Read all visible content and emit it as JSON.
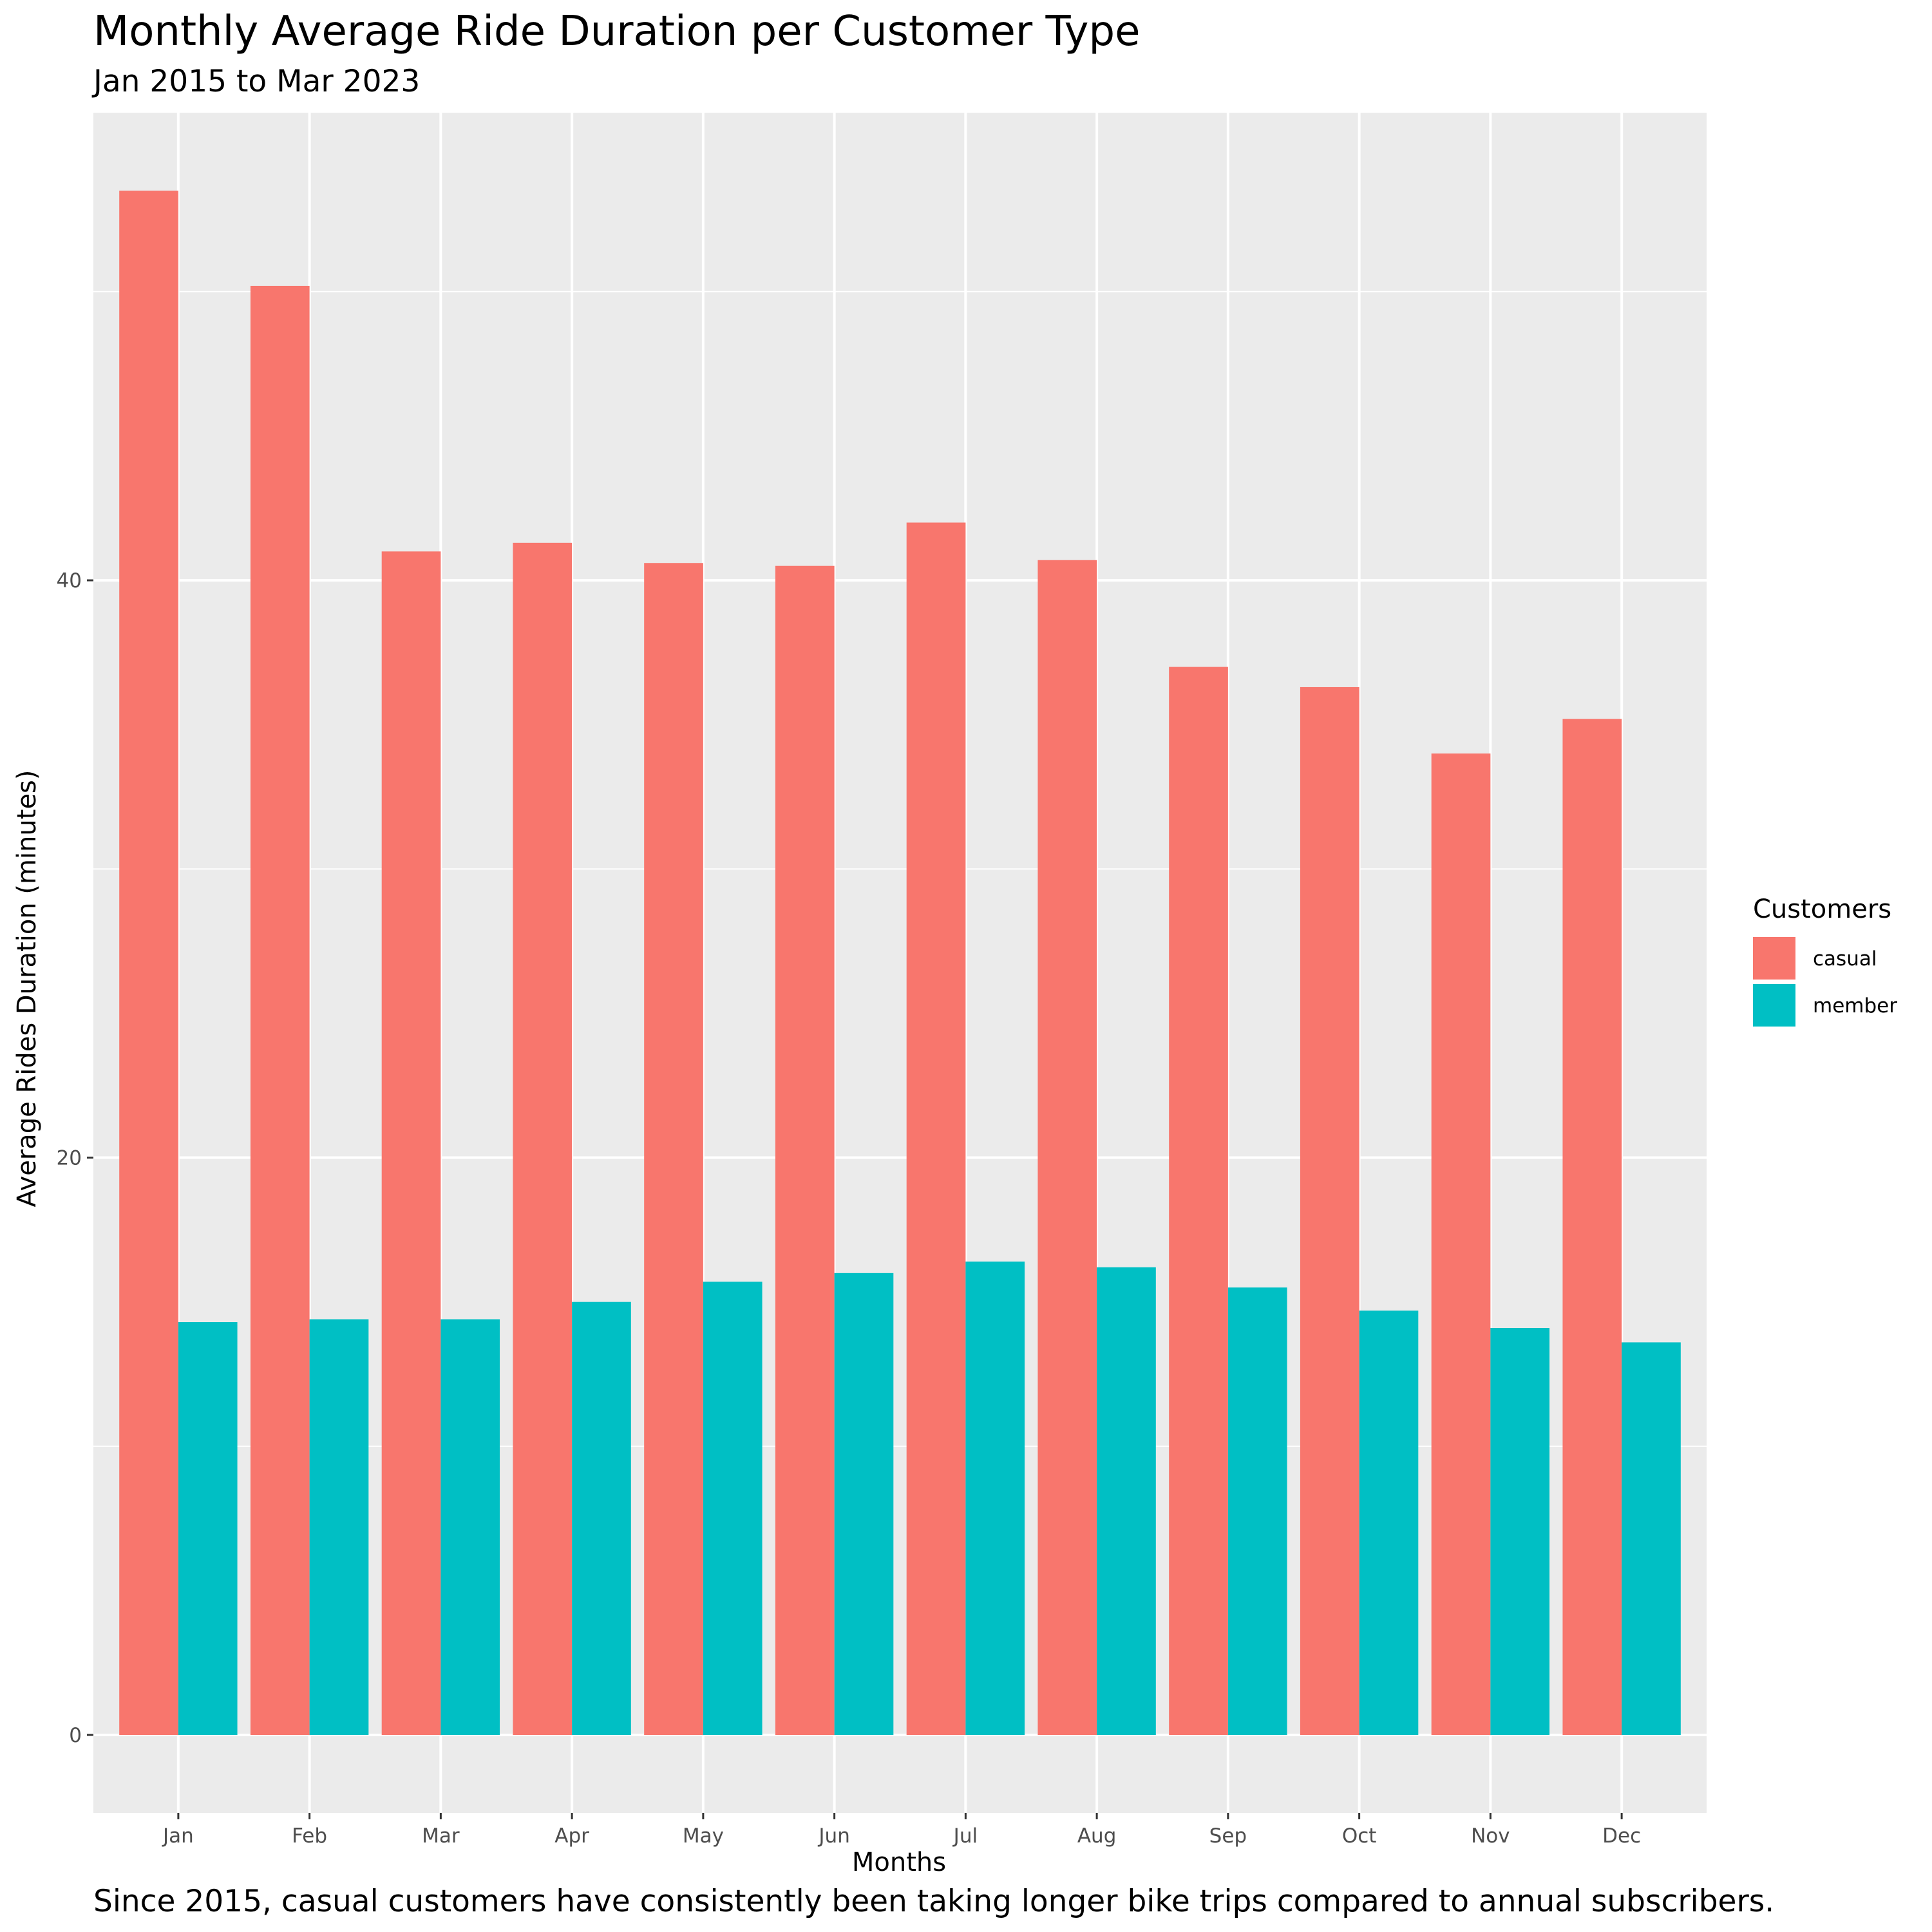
{
  "chart_data": {
    "type": "bar",
    "title": "Monthly Average Ride Duration per Customer Type",
    "subtitle": "Jan 2015 to Mar 2023",
    "caption": "Since 2015, casual customers have consistently been taking longer bike trips compared to annual subscribers.",
    "xlabel": "Months",
    "ylabel": "Average Rides Duration (minutes)",
    "categories": [
      "Jan",
      "Feb",
      "Mar",
      "Apr",
      "May",
      "Jun",
      "Jul",
      "Aug",
      "Sep",
      "Oct",
      "Nov",
      "Dec"
    ],
    "series": [
      {
        "name": "casual",
        "color": "#F8766D",
        "values": [
          53.5,
          50.2,
          41.0,
          41.3,
          40.6,
          40.5,
          42.0,
          40.7,
          37.0,
          36.3,
          34.0,
          35.2
        ]
      },
      {
        "name": "member",
        "color": "#00BFC4",
        "values": [
          14.3,
          14.4,
          14.4,
          15.0,
          15.7,
          16.0,
          16.4,
          16.2,
          15.5,
          14.7,
          14.1,
          13.6
        ]
      }
    ],
    "yticks": [
      0,
      20,
      40
    ],
    "ylim": [
      -2.7,
      56.2
    ],
    "grid": true,
    "legend": {
      "title": "Customers",
      "position": "right"
    }
  }
}
